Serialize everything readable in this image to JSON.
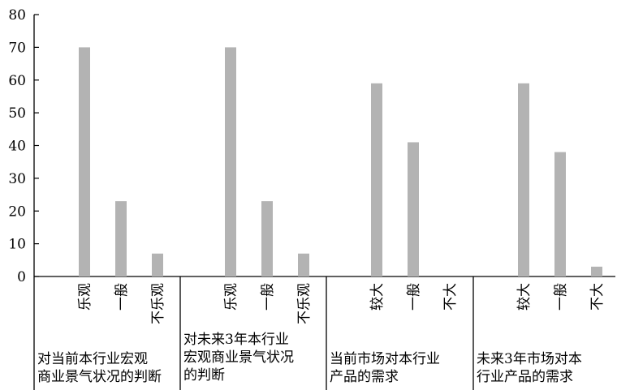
{
  "chart_data": {
    "type": "bar",
    "title": "",
    "xlabel": "",
    "ylabel": "",
    "ylim": [
      0,
      80
    ],
    "yticks": [
      0,
      10,
      20,
      30,
      40,
      50,
      60,
      70,
      80
    ],
    "grid": false,
    "bar_color": "#b3b3b3",
    "groups": [
      {
        "label_lines": [
          "对当前本行业宏观",
          "商业景气状况的判断"
        ],
        "categories": [
          "乐观",
          "一般",
          "不乐观"
        ],
        "values": [
          70,
          23,
          7
        ]
      },
      {
        "label_lines": [
          "对未来3年本行业",
          "宏观商业景气状况",
          "的判断"
        ],
        "categories": [
          "乐观",
          "一般",
          "不乐观"
        ],
        "values": [
          70,
          23,
          7
        ]
      },
      {
        "label_lines": [
          "当前市场对本行业",
          "产品的需求"
        ],
        "categories": [
          "较大",
          "一般",
          "不大"
        ],
        "values": [
          59,
          41,
          0
        ]
      },
      {
        "label_lines": [
          "未来3年市场对本",
          "行业产品的需求"
        ],
        "categories": [
          "较大",
          "一般",
          "不大"
        ],
        "values": [
          59,
          38,
          3
        ]
      }
    ]
  }
}
